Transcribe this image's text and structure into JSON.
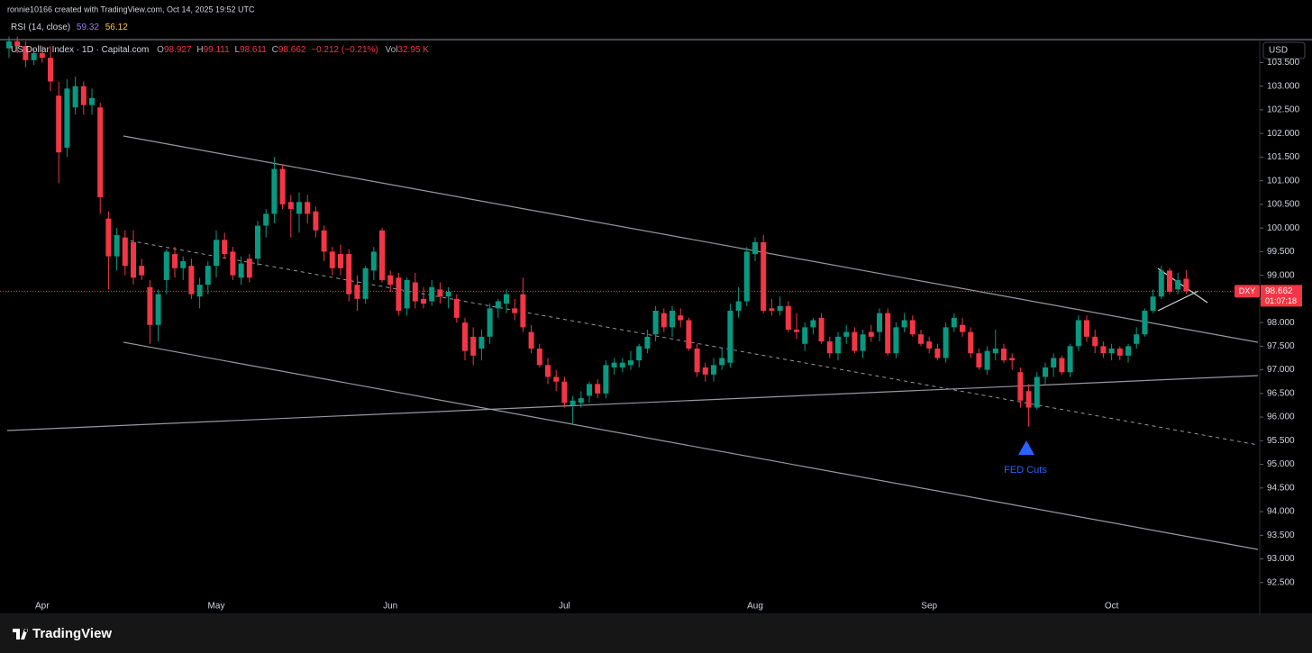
{
  "header": "ronnie10166 created with TradingView.com, Oct 14, 2025 19:52 UTC",
  "rsi": {
    "label": "RSI (14, close)",
    "values": [
      59.32,
      56.12
    ]
  },
  "logo": "TradingView",
  "chart_data": {
    "type": "candlestick",
    "title": "US Dollar Index · 1D · Capital.com",
    "ohlc_labels": [
      "O",
      "H",
      "L",
      "C"
    ],
    "change": "−0.212 (−0.21%)",
    "volume_label": "Vol",
    "volume": "32.95 K",
    "currency": "USD",
    "symbol": "DXY",
    "countdown": "01:07:18",
    "annotation": "FED Cuts",
    "up_color": "#089981",
    "down_color": "#f23645",
    "grid": false,
    "categories": [
      null,
      null,
      null,
      null,
      "Apr",
      null,
      null,
      null,
      null,
      null,
      null,
      null,
      null,
      null,
      null,
      null,
      null,
      null,
      null,
      null,
      null,
      null,
      null,
      null,
      null,
      "May",
      null,
      null,
      null,
      null,
      null,
      null,
      null,
      null,
      null,
      null,
      null,
      null,
      null,
      null,
      null,
      null,
      null,
      null,
      null,
      null,
      "Jun",
      null,
      null,
      null,
      null,
      null,
      null,
      null,
      null,
      null,
      null,
      null,
      null,
      null,
      null,
      null,
      null,
      null,
      null,
      null,
      null,
      "Jul",
      null,
      null,
      null,
      null,
      null,
      null,
      null,
      null,
      null,
      null,
      null,
      null,
      null,
      null,
      null,
      null,
      null,
      null,
      null,
      null,
      null,
      null,
      "Aug",
      null,
      null,
      null,
      null,
      null,
      null,
      null,
      null,
      null,
      null,
      null,
      null,
      null,
      null,
      null,
      null,
      null,
      null,
      null,
      null,
      "Sep",
      null,
      null,
      null,
      null,
      null,
      null,
      null,
      null,
      null,
      null,
      null,
      null,
      null,
      null,
      null,
      null,
      null,
      null,
      null,
      null,
      null,
      "Oct",
      null,
      null,
      null,
      null,
      null,
      null,
      null,
      null,
      null
    ],
    "open": [
      103.8,
      103.95,
      103.85,
      103.55,
      103.7,
      103.6,
      102.8,
      101.7,
      102.55,
      103.0,
      102.6,
      102.55,
      100.2,
      99.4,
      99.8,
      99.7,
      99.2,
      98.75,
      97.95,
      98.9,
      99.45,
      99.15,
      99.2,
      98.55,
      98.8,
      99.2,
      99.75,
      99.5,
      98.95,
      99.35,
      99.35,
      100.05,
      100.3,
      101.25,
      100.55,
      100.3,
      100.55,
      100.35,
      99.95,
      99.5,
      99.45,
      99.45,
      98.8,
      98.5,
      99.1,
      99.95,
      99.0,
      98.95,
      98.3,
      98.85,
      98.5,
      98.45,
      98.7,
      98.55,
      98.5,
      98.0,
      97.7,
      97.45,
      97.7,
      98.3,
      98.4,
      98.3,
      98.6,
      97.8,
      97.45,
      97.1,
      96.85,
      96.75,
      96.25,
      96.3,
      96.45,
      96.7,
      96.5,
      97.05,
      97.05,
      97.1,
      97.2,
      97.45,
      97.75,
      98.2,
      97.9,
      98.15,
      98.05,
      97.45,
      97.05,
      96.9,
      97.1,
      97.15,
      98.25,
      98.45,
      99.45,
      99.7,
      98.3,
      98.25,
      98.35,
      97.85,
      97.55,
      97.9,
      98.1,
      97.6,
      97.35,
      97.7,
      97.8,
      97.4,
      97.8,
      97.8,
      98.2,
      97.35,
      97.9,
      98.05,
      97.75,
      97.6,
      97.45,
      97.25,
      97.9,
      97.95,
      97.8,
      97.35,
      97.0,
      97.35,
      97.45,
      97.25,
      96.95,
      96.55,
      96.2,
      96.85,
      97.05,
      97.25,
      96.95,
      97.5,
      98.05,
      97.7,
      97.5,
      97.35,
      97.45,
      97.3,
      97.55,
      97.75,
      98.25,
      98.55,
      99.1,
      98.7,
      98.927
    ],
    "high": [
      104.05,
      104.05,
      103.95,
      103.8,
      103.85,
      103.85,
      103.1,
      103.15,
      103.2,
      103.1,
      102.95,
      102.65,
      100.35,
      100.0,
      99.95,
      99.95,
      99.35,
      98.9,
      98.7,
      99.55,
      99.6,
      99.4,
      99.35,
      98.95,
      99.3,
      99.95,
      99.9,
      99.6,
      99.4,
      99.45,
      100.15,
      100.4,
      101.5,
      101.35,
      100.7,
      100.75,
      100.7,
      100.45,
      100.05,
      99.6,
      99.65,
      99.55,
      99.0,
      99.2,
      99.6,
      100.0,
      99.1,
      99.05,
      98.95,
      99.05,
      98.75,
      98.9,
      98.85,
      98.75,
      98.6,
      98.1,
      97.9,
      97.85,
      98.4,
      98.5,
      98.7,
      98.5,
      98.95,
      97.95,
      97.55,
      97.25,
      97.0,
      96.85,
      96.45,
      96.55,
      96.75,
      96.8,
      97.2,
      97.25,
      97.25,
      97.4,
      97.55,
      97.85,
      98.35,
      98.3,
      98.35,
      98.3,
      98.1,
      97.55,
      97.15,
      97.25,
      97.45,
      98.4,
      98.75,
      99.6,
      99.8,
      99.85,
      98.5,
      98.55,
      98.45,
      98.2,
      98.0,
      98.1,
      98.2,
      97.7,
      97.8,
      97.95,
      97.9,
      97.85,
      97.95,
      98.3,
      98.3,
      98.0,
      98.2,
      98.15,
      97.85,
      97.7,
      97.55,
      98.0,
      98.2,
      98.1,
      97.9,
      97.45,
      97.5,
      97.85,
      97.55,
      97.35,
      97.05,
      96.7,
      96.95,
      97.15,
      97.35,
      97.3,
      97.55,
      98.15,
      98.15,
      97.85,
      97.6,
      97.55,
      97.5,
      97.55,
      97.9,
      98.3,
      98.7,
      99.2,
      99.15,
      99.05,
      99.111
    ],
    "low": [
      103.6,
      103.7,
      103.4,
      103.45,
      103.5,
      102.9,
      100.95,
      101.5,
      102.4,
      102.4,
      102.4,
      100.3,
      98.7,
      99.1,
      99.0,
      98.8,
      98.9,
      97.55,
      97.6,
      98.6,
      98.95,
      98.9,
      98.5,
      98.3,
      98.6,
      98.95,
      99.35,
      98.9,
      98.8,
      98.85,
      99.2,
      99.8,
      100.1,
      100.4,
      99.8,
      99.9,
      100.1,
      99.8,
      99.3,
      99.0,
      99.0,
      98.45,
      98.25,
      98.4,
      98.9,
      98.85,
      98.65,
      98.15,
      98.15,
      98.3,
      98.3,
      98.35,
      98.4,
      98.3,
      98.0,
      97.2,
      97.1,
      97.2,
      97.55,
      98.1,
      98.2,
      98.05,
      97.8,
      97.35,
      97.05,
      96.7,
      96.55,
      96.2,
      95.85,
      96.2,
      96.3,
      96.4,
      96.4,
      96.9,
      96.95,
      97.0,
      97.05,
      97.35,
      97.6,
      97.8,
      97.7,
      97.9,
      97.4,
      96.85,
      96.75,
      96.75,
      97.0,
      97.05,
      98.1,
      98.35,
      99.3,
      98.2,
      98.15,
      98.15,
      97.8,
      97.65,
      97.4,
      97.75,
      97.55,
      97.25,
      97.2,
      97.55,
      97.35,
      97.25,
      97.6,
      97.6,
      97.3,
      97.25,
      97.8,
      97.7,
      97.5,
      97.35,
      97.2,
      97.15,
      97.8,
      97.7,
      97.25,
      97.0,
      96.9,
      97.2,
      97.15,
      97.0,
      96.2,
      95.8,
      96.15,
      96.7,
      96.85,
      96.9,
      96.85,
      97.4,
      97.6,
      97.35,
      97.25,
      97.2,
      97.2,
      97.15,
      97.45,
      97.7,
      98.2,
      98.5,
      98.6,
      98.6,
      98.611
    ],
    "close": [
      103.95,
      103.85,
      103.55,
      103.7,
      103.6,
      103.1,
      101.6,
      102.95,
      103.0,
      102.6,
      102.75,
      100.65,
      99.4,
      99.85,
      99.2,
      98.95,
      99.0,
      97.95,
      98.6,
      99.5,
      99.15,
      99.3,
      98.6,
      98.8,
      99.2,
      99.75,
      99.45,
      99.0,
      99.25,
      98.95,
      100.05,
      100.3,
      101.25,
      100.5,
      100.4,
      100.55,
      100.3,
      99.95,
      99.5,
      99.15,
      99.15,
      98.6,
      98.5,
      99.15,
      99.5,
      98.9,
      98.8,
      98.25,
      98.9,
      98.45,
      98.4,
      98.75,
      98.55,
      98.65,
      98.1,
      97.4,
      97.3,
      97.7,
      98.3,
      98.45,
      98.6,
      98.2,
      97.9,
      97.45,
      97.1,
      96.85,
      96.75,
      96.3,
      96.35,
      96.4,
      96.7,
      96.5,
      97.1,
      97.15,
      97.15,
      97.2,
      97.5,
      97.7,
      98.25,
      97.9,
      98.25,
      98.05,
      97.45,
      96.95,
      96.9,
      97.1,
      97.25,
      98.25,
      98.45,
      99.5,
      99.7,
      98.25,
      98.25,
      98.35,
      97.85,
      97.8,
      97.9,
      98.05,
      97.6,
      97.35,
      97.7,
      97.8,
      97.4,
      97.75,
      97.7,
      98.2,
      97.35,
      97.9,
      98.05,
      97.75,
      97.55,
      97.45,
      97.25,
      97.9,
      98.1,
      97.8,
      97.35,
      97.05,
      97.4,
      97.45,
      97.2,
      97.2,
      96.35,
      96.2,
      96.85,
      97.05,
      97.25,
      96.95,
      97.5,
      98.05,
      97.7,
      97.5,
      97.35,
      97.45,
      97.3,
      97.5,
      97.75,
      98.25,
      98.55,
      99.1,
      98.65,
      98.9,
      98.662
    ],
    "ylim": [
      91.81,
      103.985
    ],
    "yticks": [
      {
        "value": 92.5,
        "label": "92.500"
      },
      {
        "value": 93,
        "label": "93.000"
      },
      {
        "value": 93.5,
        "label": "93.500"
      },
      {
        "value": 94,
        "label": "94.000"
      },
      {
        "value": 94.5,
        "label": "94.500"
      },
      {
        "value": 95,
        "label": "95.000"
      },
      {
        "value": 95.5,
        "label": "95.500"
      },
      {
        "value": 96,
        "label": "96.000"
      },
      {
        "value": 96.5,
        "label": "96.500"
      },
      {
        "value": 97,
        "label": "97.000"
      },
      {
        "value": 97.5,
        "label": "97.500"
      },
      {
        "value": 98,
        "label": "98.000"
      },
      {
        "value": 98.5,
        "label": "98.500"
      },
      {
        "value": 99,
        "label": "99.000"
      },
      {
        "value": 99.5,
        "label": "99.500"
      },
      {
        "value": 100,
        "label": "100.000"
      },
      {
        "value": 100.5,
        "label": "100.500"
      },
      {
        "value": 101,
        "label": "101.000"
      },
      {
        "value": 101.5,
        "label": "101.500"
      },
      {
        "value": 102,
        "label": "102.000"
      },
      {
        "value": 102.5,
        "label": "102.500"
      },
      {
        "value": 103,
        "label": "103.000"
      },
      {
        "value": 103.5,
        "label": "103.500"
      }
    ]
  }
}
